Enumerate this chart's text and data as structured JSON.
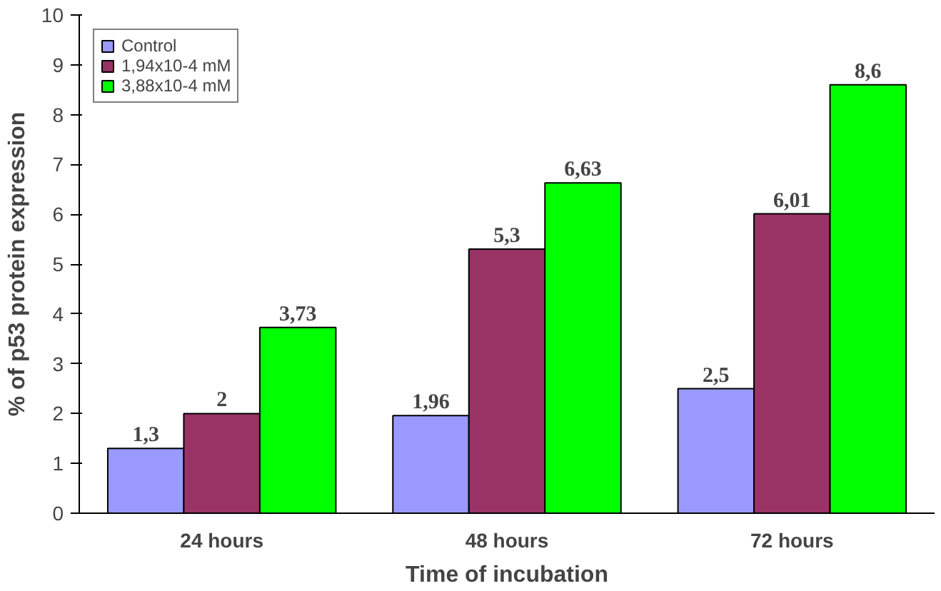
{
  "chart_data": {
    "type": "bar",
    "xlabel": "Time of incubation",
    "ylabel": "% of p53 protein expression",
    "categories": [
      "24 hours",
      "48 hours",
      "72 hours"
    ],
    "series": [
      {
        "name": "Control",
        "color": "#9999ff",
        "values": [
          1.3,
          1.96,
          2.5
        ],
        "value_labels": [
          "1,3",
          "1,96",
          "2,5"
        ]
      },
      {
        "name": "1,94x10-4 mM",
        "color": "#993366",
        "values": [
          2,
          5.3,
          6.01
        ],
        "value_labels": [
          "2",
          "5,3",
          "6,01"
        ]
      },
      {
        "name": "3,88x10-4 mM",
        "color": "#00ff00",
        "values": [
          3.73,
          6.63,
          8.6
        ],
        "value_labels": [
          "3,73",
          "6,63",
          "8,6"
        ]
      }
    ],
    "ylim": [
      0,
      10
    ],
    "yticks": [
      0,
      1,
      2,
      3,
      4,
      5,
      6,
      7,
      8,
      9,
      10
    ],
    "legend": "top left"
  }
}
